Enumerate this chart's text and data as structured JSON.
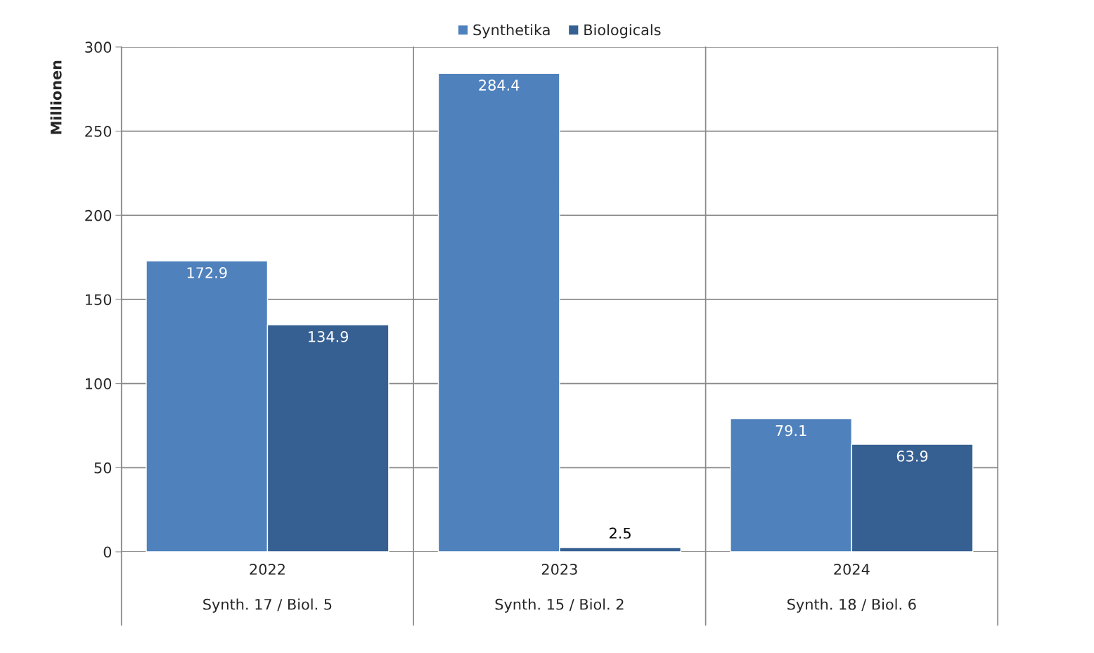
{
  "chart_data": {
    "type": "bar",
    "ylabel": "Millionen",
    "categories": [
      "2022\n\nSynth. 17 / Biol. 5",
      "2023\n\nSynth. 15 / Biol. 2",
      "2024\n\nSynth. 18 / Biol. 6"
    ],
    "series": [
      {
        "name": "Synthetika",
        "color": "#4f81bd",
        "values": [
          172.9,
          284.4,
          79.1
        ]
      },
      {
        "name": "Biologicals",
        "color": "#376092",
        "values": [
          134.9,
          2.5,
          63.9
        ]
      }
    ],
    "ylim": [
      0,
      300
    ],
    "yticks": [
      0,
      50,
      100,
      150,
      200,
      250,
      300
    ],
    "grid": true,
    "legend": "top",
    "data_labels": true
  }
}
